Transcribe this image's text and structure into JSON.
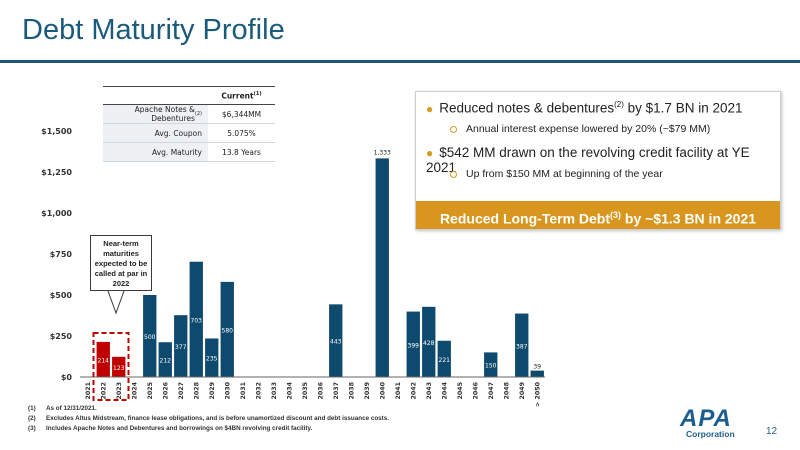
{
  "header": {
    "title": "Debt Maturity Profile"
  },
  "table": {
    "header": "Current",
    "header_sup": "(1)",
    "rows": [
      {
        "label": "Apache Notes & Debentures",
        "sup": "(2)",
        "value": "$6,344MM"
      },
      {
        "label": "Avg. Coupon",
        "sup": "",
        "value": "5.075%"
      },
      {
        "label": "Avg. Maturity",
        "sup": "",
        "value": "13.8 Years"
      }
    ]
  },
  "callout": {
    "bullet1_pre": "Reduced notes & debentures",
    "bullet1_sup": "(2)",
    "bullet1_post": " by $1.7 BN in 2021",
    "sub1": "Annual interest expense lowered by 20% (~$79 MM)",
    "bullet2": "$542 MM drawn on the revolving credit facility at YE 2021",
    "sub2": "Up from $150 MM at beginning of the year",
    "banner_pre": "Reduced Long-Term Debt",
    "banner_sup": "(3)",
    "banner_post": " by ~$1.3 BN in 2021"
  },
  "near_term": {
    "lines": [
      "Near-term",
      "maturities",
      "expected to be",
      "called at par in",
      "2022"
    ]
  },
  "chart_data": {
    "type": "bar",
    "categories": [
      "2021",
      "2022",
      "2023",
      "2024",
      "2025",
      "2026",
      "2027",
      "2028",
      "2029",
      "2030",
      "2031",
      "2032",
      "2033",
      "2034",
      "2035",
      "2036",
      "2037",
      "2038",
      "2039",
      "2040",
      "2041",
      "2042",
      "2043",
      "2044",
      "2045",
      "2046",
      "2047",
      "2048",
      "2049",
      "> 2050"
    ],
    "values": [
      0,
      214,
      123,
      0,
      500,
      212,
      377,
      703,
      235,
      580,
      0,
      0,
      0,
      0,
      0,
      0,
      443,
      0,
      0,
      1333,
      0,
      399,
      428,
      221,
      0,
      0,
      150,
      0,
      387,
      39
    ],
    "labels": [
      "",
      "214",
      "123",
      "",
      "500",
      "212",
      "377",
      "703",
      "235",
      "580",
      "",
      "",
      "",
      "",
      "",
      "",
      "443",
      "",
      "",
      "1,333",
      "",
      "399",
      "428",
      "221",
      "",
      "",
      "150",
      "",
      "387",
      "39"
    ],
    "highlight_categories": [
      "2022",
      "2023"
    ],
    "y_ticks": [
      "$0",
      "$250",
      "$500",
      "$750",
      "$1,000",
      "$1,250",
      "$1,500"
    ],
    "ylim": [
      0,
      1500
    ],
    "grid": false,
    "colors": {
      "default": "#0e4a6e",
      "highlight": "#c00000"
    }
  },
  "footnotes": [
    {
      "num": "(1)",
      "text": "As of 12/31/2021."
    },
    {
      "num": "(2)",
      "text": "Excludes Altus Midstream, finance lease obligations, and is before unamortized discount and debt issuance costs."
    },
    {
      "num": "(3)",
      "text": "Includes Apache Notes and Debentures and borrowings on $4BN revolving credit facility."
    }
  ],
  "logo": {
    "name": "APA",
    "sub": "Corporation"
  },
  "page_number": "12"
}
